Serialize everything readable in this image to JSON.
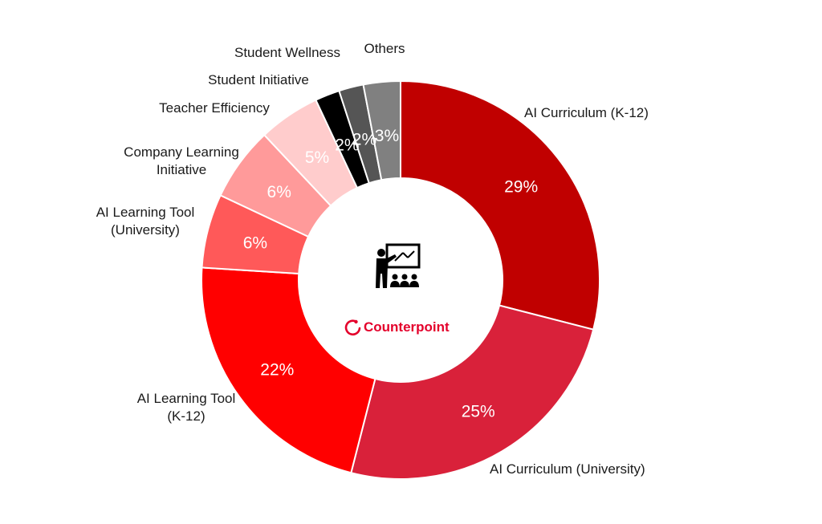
{
  "chart_data": {
    "type": "pie",
    "donut": true,
    "title": "",
    "categories": [
      "AI Curriculum (K-12)",
      "AI Curriculum (University)",
      "AI Learning Tool\n(K-12)",
      "AI Learning Tool\n(University)",
      "Company Learning\nInitiative",
      "Teacher Efficiency",
      "Student Initiative",
      "Student Wellness",
      "Others"
    ],
    "values": [
      29,
      25,
      22,
      6,
      6,
      5,
      2,
      2,
      3
    ],
    "value_labels": [
      "29%",
      "25%",
      "22%",
      "6%",
      "6%",
      "5%",
      "2%",
      "2%",
      "3%"
    ],
    "colors": [
      "#c00000",
      "#d9213a",
      "#ff0000",
      "#ff5959",
      "#ff9a9a",
      "#ffcccc",
      "#000000",
      "#555555",
      "#808080"
    ]
  },
  "center": {
    "icon": "teacher-presentation-icon",
    "brand_logo": "counterpoint-logo-icon",
    "brand_name": "Counterpoint",
    "brand_color": "#e4002b"
  }
}
